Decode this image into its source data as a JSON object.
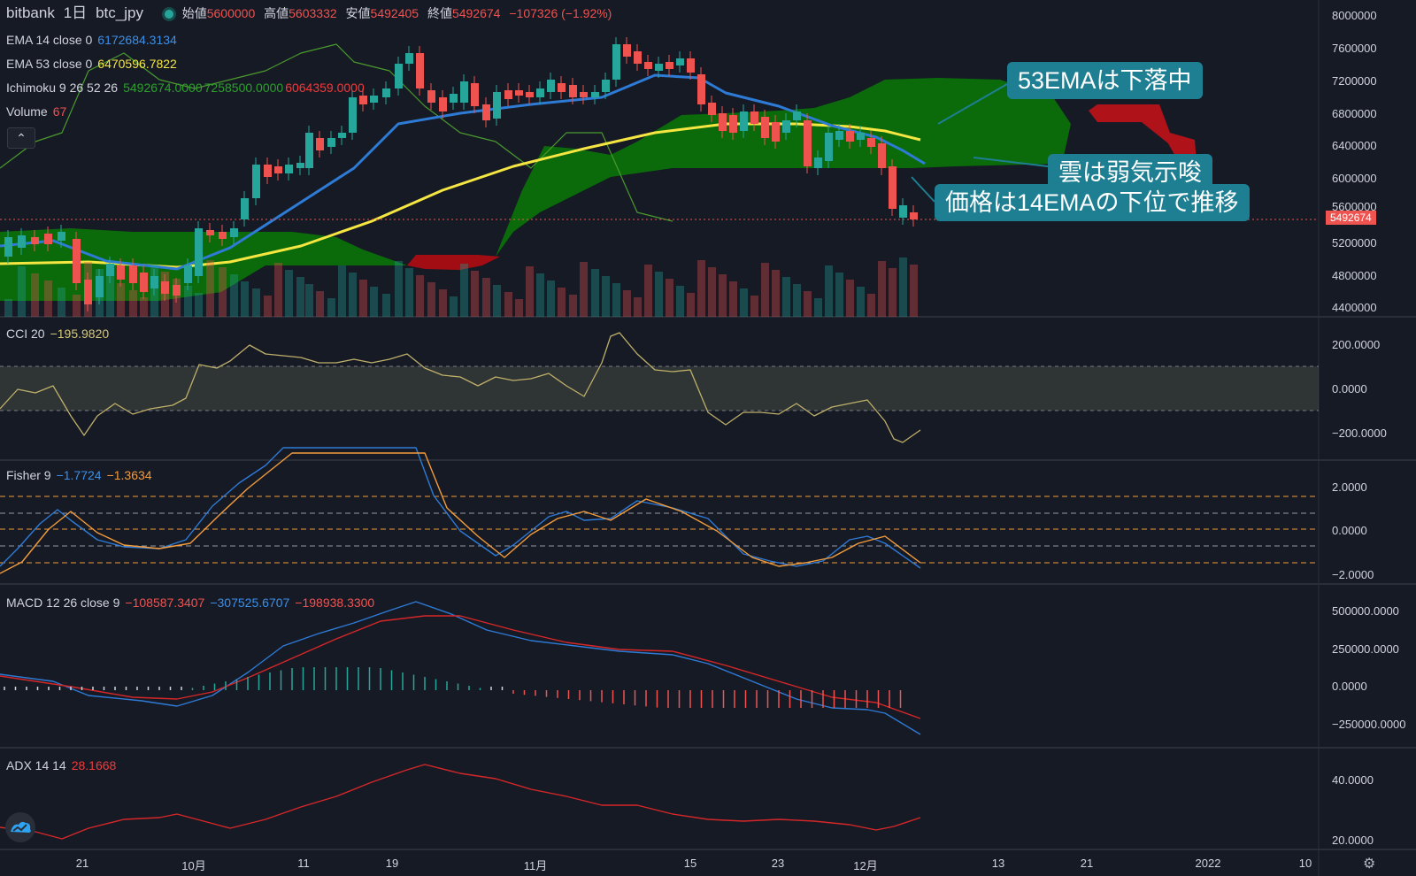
{
  "header": {
    "exchange": "bitbank",
    "interval": "1日",
    "symbol": "btc_jpy",
    "open_label": "始値",
    "open_value": "5600000",
    "high_label": "高値",
    "high_value": "5603332",
    "low_label": "安値",
    "low_value": "5492405",
    "close_label": "終値",
    "close_value": "5492674",
    "change": "−107326 (−1.92%)"
  },
  "indicators": {
    "ema14": {
      "label": "EMA 14 close 0",
      "value": "6172684.3134",
      "color": "#2e7bd6"
    },
    "ema53": {
      "label": "EMA 53 close 0",
      "value": "6470596.7822",
      "color": "#f5e642"
    },
    "ichimoku": {
      "label": "Ichimoku 9 26 52 26",
      "v1": "5492674.0000",
      "v2": "7258500.0000",
      "v3": "6064359.0000"
    },
    "volume": {
      "label": "Volume",
      "value": "67"
    },
    "cci": {
      "label": "CCI 20",
      "value": "−195.9820"
    },
    "fisher": {
      "label": "Fisher 9",
      "v1": "−1.7724",
      "v2": "−1.3634"
    },
    "macd": {
      "label": "MACD 12 26 close 9",
      "v1": "−108587.3407",
      "v2": "−307525.6707",
      "v3": "−198938.3300"
    },
    "adx": {
      "label": "ADX 14 14",
      "value": "28.1668"
    }
  },
  "price_axis": [
    "8000000",
    "7600000",
    "7200000",
    "6800000",
    "6400000",
    "6000000",
    "5600000",
    "5200000",
    "4800000",
    "4400000"
  ],
  "last_price_tag": "5492674",
  "cci_axis": [
    "200.0000",
    "0.0000",
    "−200.0000"
  ],
  "fisher_axis": [
    "2.0000",
    "0.0000",
    "−2.0000"
  ],
  "macd_axis": [
    "500000.0000",
    "250000.0000",
    "0.0000",
    "−250000.0000"
  ],
  "adx_axis": [
    "40.0000",
    "20.0000"
  ],
  "time_axis": [
    "21",
    "10月",
    "11",
    "19",
    "11月",
    "15",
    "23",
    "12月",
    "13",
    "21",
    "2022",
    "10"
  ],
  "annotations": {
    "a1": "53EMAは下落中",
    "a2": "雲は弱気示唆",
    "a3": "価格は14EMAの下位で推移"
  },
  "colors": {
    "up": "#26a69a",
    "down": "#ef5350",
    "bg": "#161a25",
    "cloud_bull": "#0b6b0b",
    "cloud_bear": "#a10d12",
    "callout": "#1e7f92"
  }
}
